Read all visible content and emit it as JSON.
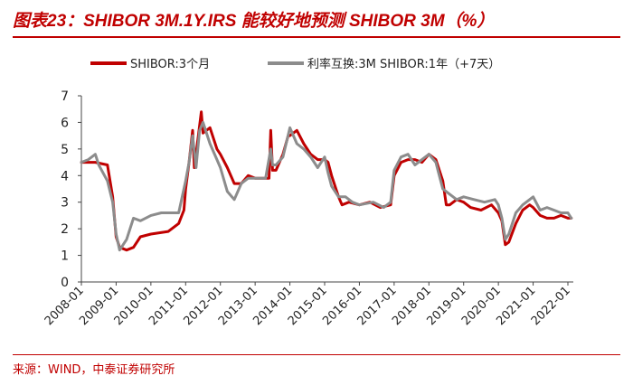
{
  "page": {
    "title": "图表23：SHIBOR 3M.1Y.IRS 能较好地预测 SHIBOR 3M（%）",
    "source": "来源：WIND，中泰证券研究所"
  },
  "colors": {
    "accent": "#c00000",
    "series1": "#c00000",
    "series2": "#8c8c8c"
  },
  "chart_data": {
    "type": "line",
    "title": "图表23：SHIBOR 3M.1Y.IRS 能较好地预测 SHIBOR 3M（%）",
    "xlabel": "",
    "ylabel": "",
    "ylim": [
      0,
      7
    ],
    "y_ticks": [
      "0",
      "1",
      "2",
      "3",
      "4",
      "5",
      "6",
      "7"
    ],
    "x_ticks": [
      "2008-01",
      "2009-01",
      "2010-01",
      "2011-01",
      "2012-01",
      "2013-01",
      "2014-01",
      "2015-01",
      "2016-01",
      "2017-01",
      "2018-01",
      "2019-01",
      "2020-01",
      "2021-01",
      "2022-01"
    ],
    "legend": "top-center",
    "grid": false,
    "series": [
      {
        "name": "SHIBOR:3个月",
        "color": "#c00000",
        "x": [
          2008.0,
          2008.4,
          2008.75,
          2008.9,
          2009.0,
          2009.1,
          2009.3,
          2009.5,
          2009.7,
          2010.0,
          2010.5,
          2010.8,
          2010.95,
          2011.0,
          2011.1,
          2011.2,
          2011.25,
          2011.3,
          2011.45,
          2011.5,
          2011.7,
          2011.9,
          2012.0,
          2012.2,
          2012.4,
          2012.6,
          2012.8,
          2013.0,
          2013.2,
          2013.4,
          2013.45,
          2013.5,
          2013.6,
          2013.8,
          2013.95,
          2014.0,
          2014.2,
          2014.4,
          2014.6,
          2014.8,
          2015.0,
          2015.1,
          2015.2,
          2015.4,
          2015.5,
          2015.7,
          2016.0,
          2016.3,
          2016.6,
          2016.9,
          2017.0,
          2017.2,
          2017.4,
          2017.6,
          2017.8,
          2018.0,
          2018.2,
          2018.4,
          2018.5,
          2018.6,
          2018.8,
          2019.0,
          2019.2,
          2019.5,
          2019.8,
          2020.0,
          2020.1,
          2020.2,
          2020.3,
          2020.5,
          2020.7,
          2020.9,
          2021.0,
          2021.2,
          2021.4,
          2021.6,
          2021.8,
          2022.0,
          2022.1
        ],
        "values": [
          4.5,
          4.5,
          4.4,
          3.2,
          1.7,
          1.3,
          1.2,
          1.3,
          1.7,
          1.8,
          1.9,
          2.2,
          2.7,
          3.5,
          4.5,
          5.7,
          4.3,
          4.8,
          6.4,
          5.6,
          5.8,
          5.0,
          4.8,
          4.3,
          3.7,
          3.7,
          4.0,
          3.9,
          3.9,
          3.9,
          5.7,
          4.2,
          4.2,
          4.8,
          5.5,
          5.5,
          5.7,
          5.2,
          4.8,
          4.6,
          4.6,
          4.5,
          4.0,
          3.2,
          2.9,
          3.0,
          2.9,
          3.0,
          2.8,
          2.9,
          4.0,
          4.5,
          4.6,
          4.6,
          4.5,
          4.8,
          4.6,
          3.8,
          2.9,
          2.9,
          3.1,
          3.0,
          2.8,
          2.7,
          2.9,
          2.6,
          2.3,
          1.4,
          1.5,
          2.2,
          2.7,
          2.9,
          2.8,
          2.5,
          2.4,
          2.4,
          2.5,
          2.4,
          2.4
        ]
      },
      {
        "name": "利率互换:3M SHIBOR:1年（+7天）",
        "color": "#8c8c8c",
        "x": [
          2008.0,
          2008.2,
          2008.4,
          2008.5,
          2008.75,
          2008.9,
          2009.0,
          2009.1,
          2009.3,
          2009.5,
          2009.7,
          2010.0,
          2010.3,
          2010.6,
          2010.8,
          2011.0,
          2011.1,
          2011.2,
          2011.3,
          2011.4,
          2011.5,
          2011.7,
          2011.9,
          2012.0,
          2012.2,
          2012.4,
          2012.6,
          2012.8,
          2013.0,
          2013.3,
          2013.45,
          2013.5,
          2013.6,
          2013.8,
          2014.0,
          2014.2,
          2014.4,
          2014.6,
          2014.8,
          2015.0,
          2015.1,
          2015.2,
          2015.4,
          2015.6,
          2015.8,
          2016.0,
          2016.4,
          2016.7,
          2016.9,
          2017.0,
          2017.2,
          2017.4,
          2017.6,
          2017.8,
          2018.0,
          2018.2,
          2018.3,
          2018.4,
          2018.6,
          2018.8,
          2019.0,
          2019.3,
          2019.6,
          2019.9,
          2020.0,
          2020.1,
          2020.2,
          2020.3,
          2020.5,
          2020.7,
          2021.0,
          2021.2,
          2021.4,
          2021.6,
          2021.8,
          2022.0,
          2022.1
        ],
        "values": [
          4.5,
          4.6,
          4.8,
          4.4,
          3.8,
          3.0,
          1.8,
          1.2,
          1.6,
          2.4,
          2.3,
          2.5,
          2.6,
          2.6,
          2.6,
          3.8,
          4.5,
          5.5,
          4.3,
          5.7,
          6.0,
          5.2,
          4.6,
          4.3,
          3.4,
          3.1,
          3.7,
          3.9,
          3.9,
          3.9,
          5.0,
          4.4,
          4.4,
          4.7,
          5.8,
          5.2,
          5.0,
          4.7,
          4.3,
          4.7,
          4.1,
          3.6,
          3.2,
          3.2,
          3.0,
          2.9,
          3.0,
          2.8,
          3.0,
          4.2,
          4.7,
          4.8,
          4.4,
          4.6,
          4.8,
          4.5,
          4.0,
          3.5,
          3.3,
          3.1,
          3.2,
          3.1,
          3.0,
          3.1,
          2.9,
          2.4,
          1.6,
          1.8,
          2.6,
          2.9,
          3.2,
          2.7,
          2.8,
          2.7,
          2.6,
          2.6,
          2.4
        ]
      }
    ]
  }
}
